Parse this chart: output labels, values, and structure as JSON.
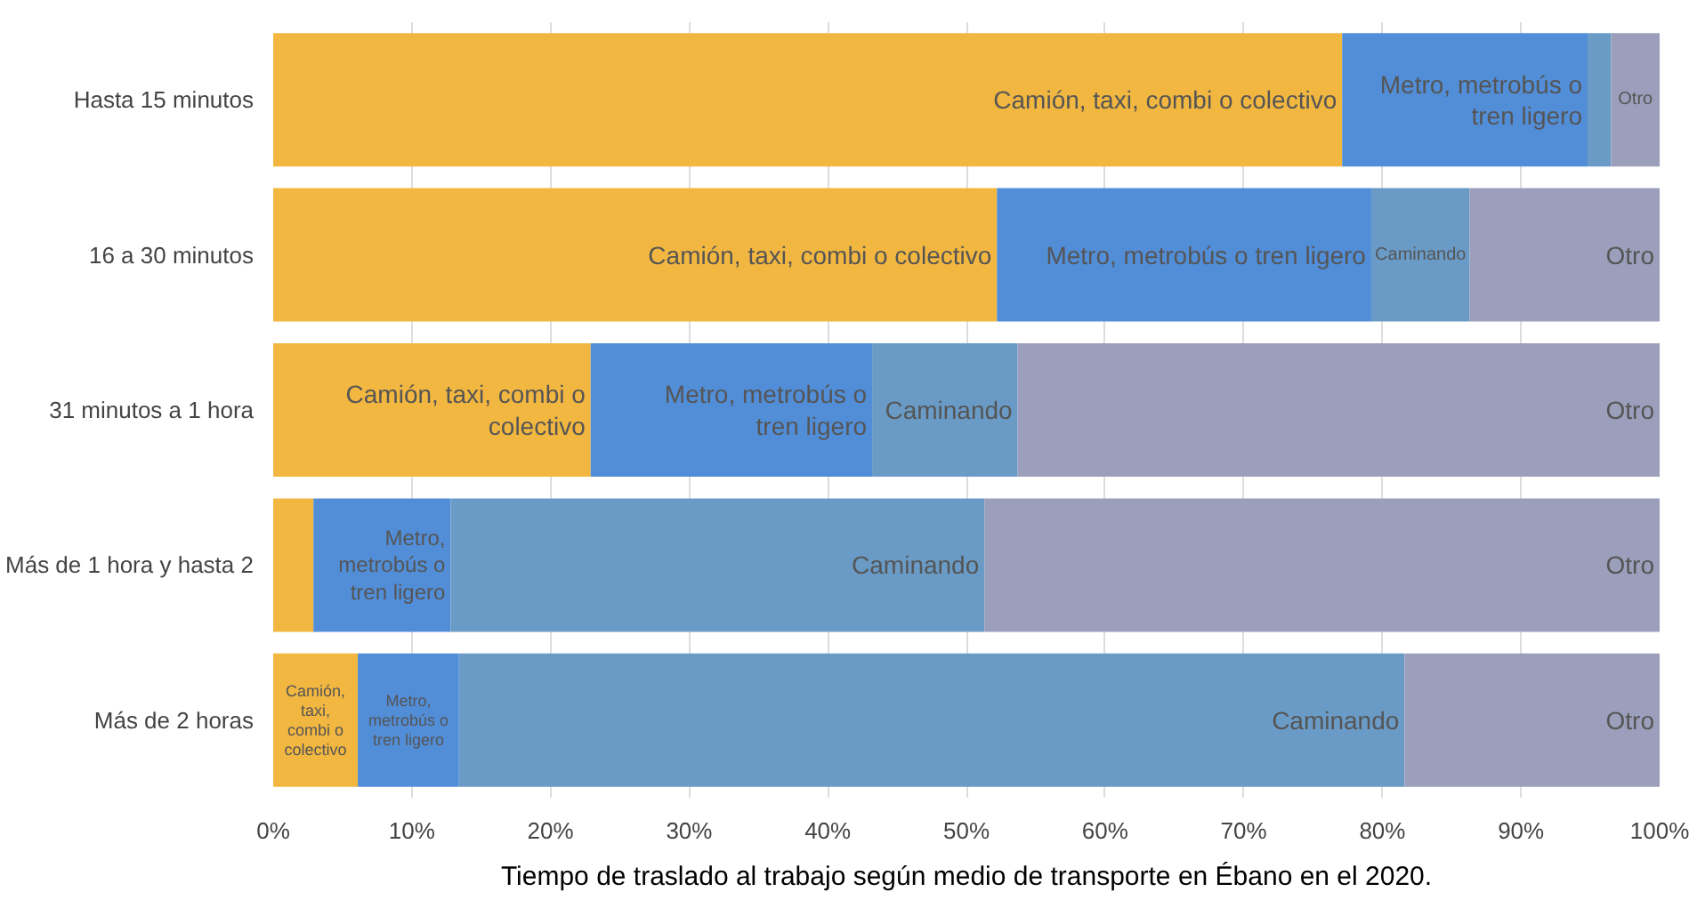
{
  "chart_data": {
    "type": "bar",
    "orientation": "horizontal",
    "stacked": true,
    "categories": [
      "Hasta 15 minutos",
      "16 a 30 minutos",
      "31 minutos a 1 hora",
      "Más de 1 hora y hasta 2",
      "Más de 2 horas"
    ],
    "series": [
      {
        "name": "Camión, taxi, combi o colectivo",
        "color": "#f2b740",
        "values": [
          77.1,
          52.2,
          22.9,
          2.9,
          6.1
        ]
      },
      {
        "color": "#528ed8",
        "values": [
          17.7,
          27.0,
          20.3,
          9.9,
          7.3
        ],
        "value_labels": [
          "Metro, metrobús o tren ligero",
          "Metro, metrobús o tren ligero",
          "Metro, metrobús o tren ligero",
          "Metro, metrobús o tren ligero",
          "Metro, metrobús o tren ligero"
        ]
      },
      {
        "name": "Caminando",
        "color": "#6a9bc6",
        "values": [
          1.7,
          7.1,
          10.5,
          38.5,
          68.2
        ]
      },
      {
        "name": "Otro",
        "color": "#9c9fbc",
        "values": [
          3.5,
          13.7,
          46.3,
          48.7,
          18.4
        ]
      }
    ],
    "xlim": [
      0,
      100
    ],
    "xticks": [
      {
        "value": 0,
        "label": "0%"
      },
      {
        "value": 10,
        "label": "10%"
      },
      {
        "value": 20,
        "label": "20%"
      },
      {
        "value": 30,
        "label": "30%"
      },
      {
        "value": 40,
        "label": "40%"
      },
      {
        "value": 50,
        "label": "50%"
      },
      {
        "value": 60,
        "label": "60%"
      },
      {
        "value": 70,
        "label": "70%"
      },
      {
        "value": 80,
        "label": "80%"
      },
      {
        "value": 90,
        "label": "90%"
      },
      {
        "value": 100,
        "label": "100%"
      }
    ],
    "grid": "x",
    "annotations": [
      "Tiempo de traslado al trabajo según medio de transporte en Ébano en el 2020."
    ]
  }
}
